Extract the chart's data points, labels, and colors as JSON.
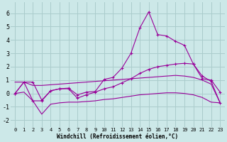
{
  "xlabel": "Windchill (Refroidissement éolien,°C)",
  "background_color": "#cce8e8",
  "grid_color": "#aacccc",
  "line_color": "#990099",
  "xlim": [
    -0.5,
    23.5
  ],
  "ylim": [
    -2.5,
    6.8
  ],
  "yticks": [
    -2,
    -1,
    0,
    1,
    2,
    3,
    4,
    5,
    6
  ],
  "xticks": [
    0,
    1,
    2,
    3,
    4,
    5,
    6,
    7,
    8,
    9,
    10,
    11,
    12,
    13,
    14,
    15,
    16,
    17,
    18,
    19,
    20,
    21,
    22,
    23
  ],
  "series": [
    {
      "x": [
        0,
        1,
        2,
        3,
        4,
        5,
        6,
        7,
        8,
        9,
        10,
        11,
        12,
        13,
        14,
        15,
        16,
        17,
        18,
        19,
        20,
        21,
        22,
        23
      ],
      "y": [
        0,
        0.85,
        0.85,
        -0.5,
        0.2,
        0.35,
        0.4,
        -0.1,
        0.1,
        0.15,
        1.05,
        1.2,
        1.9,
        3.0,
        4.9,
        6.1,
        4.4,
        4.3,
        3.9,
        3.6,
        2.2,
        1.1,
        1.0,
        0.1
      ],
      "marker": true
    },
    {
      "x": [
        0,
        1,
        2,
        3,
        4,
        5,
        6,
        7,
        8,
        9,
        10,
        11,
        12,
        13,
        14,
        15,
        16,
        17,
        18,
        19,
        20,
        21,
        22,
        23
      ],
      "y": [
        0,
        0.85,
        -0.55,
        -0.55,
        0.2,
        0.35,
        0.35,
        -0.35,
        -0.1,
        0.1,
        0.35,
        0.5,
        0.8,
        1.1,
        1.5,
        1.8,
        2.0,
        2.1,
        2.2,
        2.25,
        2.2,
        1.3,
        0.9,
        -0.7
      ],
      "marker": true
    },
    {
      "x": [
        0,
        1,
        2,
        3,
        4,
        5,
        6,
        7,
        8,
        9,
        10,
        11,
        12,
        13,
        14,
        15,
        16,
        17,
        18,
        19,
        20,
        21,
        22,
        23
      ],
      "y": [
        0.85,
        0.85,
        0.6,
        0.6,
        0.65,
        0.7,
        0.75,
        0.8,
        0.85,
        0.9,
        0.95,
        1.0,
        1.05,
        1.1,
        1.15,
        1.2,
        1.25,
        1.3,
        1.35,
        1.3,
        1.2,
        1.0,
        0.7,
        -0.7
      ],
      "marker": false
    },
    {
      "x": [
        0,
        1,
        2,
        3,
        4,
        5,
        6,
        7,
        8,
        9,
        10,
        11,
        12,
        13,
        14,
        15,
        16,
        17,
        18,
        19,
        20,
        21,
        22,
        23
      ],
      "y": [
        0,
        0.1,
        -0.55,
        -1.55,
        -0.8,
        -0.7,
        -0.65,
        -0.65,
        -0.6,
        -0.55,
        -0.45,
        -0.4,
        -0.3,
        -0.2,
        -0.1,
        -0.05,
        0.0,
        0.05,
        0.05,
        0.0,
        -0.1,
        -0.3,
        -0.65,
        -0.7
      ],
      "marker": false
    }
  ]
}
